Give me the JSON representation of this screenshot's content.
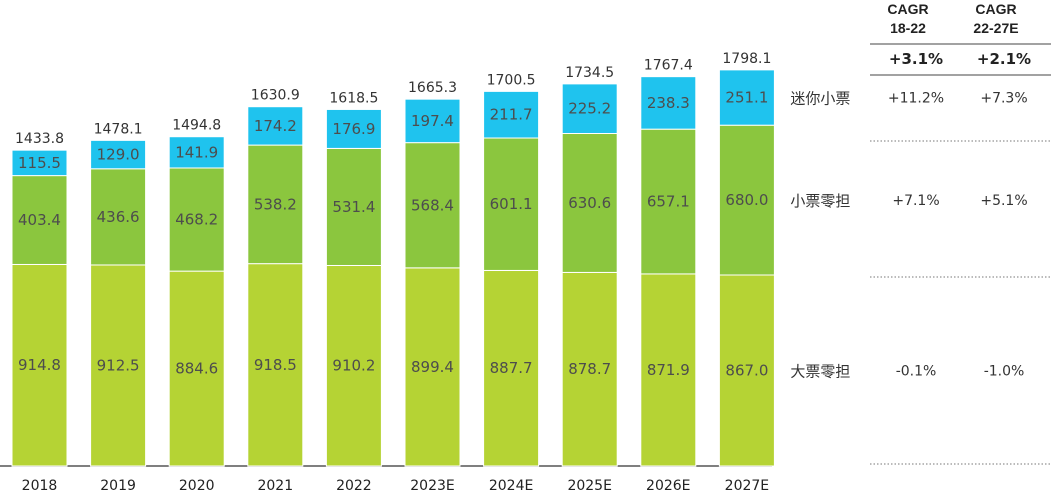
{
  "chart_data": {
    "type": "bar",
    "stacked": true,
    "categories": [
      "2018",
      "2019",
      "2020",
      "2021",
      "2022",
      "2023E",
      "2024E",
      "2025E",
      "2026E",
      "2027E"
    ],
    "series": [
      {
        "name": "大票零担",
        "color": "#b5d334",
        "values": [
          914.8,
          912.5,
          884.6,
          918.5,
          910.2,
          899.4,
          887.7,
          878.7,
          871.9,
          867.0
        ],
        "labels": [
          "914.8",
          "912.5",
          "884.6",
          "918.5",
          "910.2",
          "899.4",
          "887.7",
          "878.7",
          "871.9",
          "867.0"
        ]
      },
      {
        "name": "小票零担",
        "color": "#8bc63e",
        "values": [
          403.4,
          436.6,
          468.2,
          538.2,
          531.4,
          568.4,
          601.1,
          630.6,
          657.1,
          680.0
        ],
        "labels": [
          "403.4",
          "436.6",
          "468.2",
          "538.2",
          "531.4",
          "568.4",
          "601.1",
          "630.6",
          "657.1",
          "680.0"
        ]
      },
      {
        "name": "迷你小票",
        "color": "#1fc3ee",
        "values": [
          115.5,
          129.0,
          141.9,
          174.2,
          176.9,
          197.4,
          211.7,
          225.2,
          238.3,
          251.1
        ],
        "labels": [
          "115.5",
          "129.0",
          "141.9",
          "174.2",
          "176.9",
          "197.4",
          "211.7",
          "225.2",
          "238.3",
          "251.1"
        ]
      }
    ],
    "totals": [
      1433.8,
      1478.1,
      1494.8,
      1630.9,
      1618.5,
      1665.3,
      1700.5,
      1734.5,
      1767.4,
      1798.1
    ],
    "total_labels": [
      "1433.8",
      "1478.1",
      "1494.8",
      "1630.9",
      "1618.5",
      "1665.3",
      "1700.5",
      "1734.5",
      "1767.4",
      "1798.1"
    ],
    "ylim": [
      0,
      1900
    ],
    "grid": false,
    "legend": "right",
    "cagr_table": {
      "headers": [
        [
          "CAGR",
          "18-22"
        ],
        [
          "CAGR",
          "22-27E"
        ]
      ],
      "total": [
        "+3.1%",
        "+2.1%"
      ],
      "rows": [
        {
          "series": "迷你小票",
          "values": [
            "+11.2%",
            "+7.3%"
          ]
        },
        {
          "series": "小票零担",
          "values": [
            "+7.1%",
            "+5.1%"
          ]
        },
        {
          "series": "大票零担",
          "values": [
            "-0.1%",
            "-1.0%"
          ]
        }
      ]
    }
  }
}
